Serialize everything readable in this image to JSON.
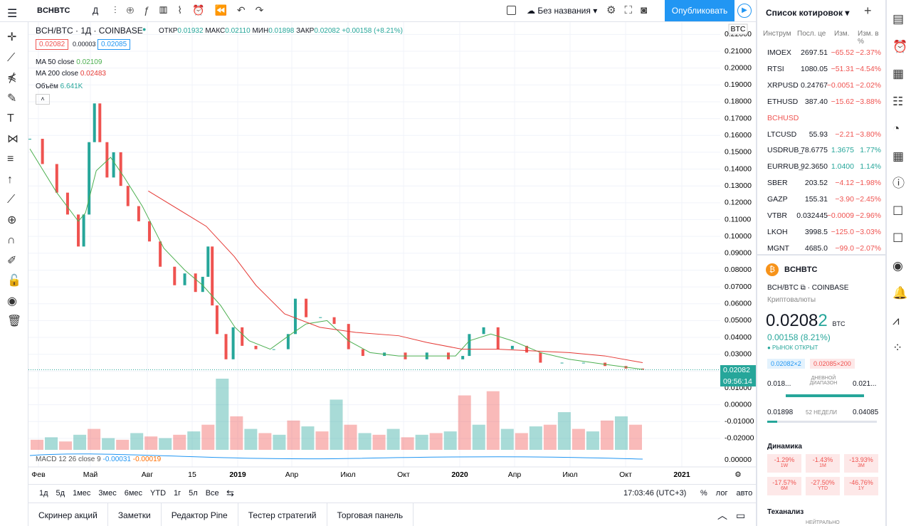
{
  "toolbar": {
    "symbol": "BCHBTC",
    "interval": "Д",
    "layout_name": "Без названия",
    "publish": "Опубликовать"
  },
  "legend": {
    "title": "BCH/BTC · 1Д · COINBASE",
    "open_label": "ОТКР",
    "open": "0.01932",
    "high_label": "МАКС",
    "high": "0.02110",
    "low_label": "МИН",
    "low": "0.01898",
    "close_label": "ЗАКР",
    "close": "0.02082",
    "change": "+0.00158 (+8.21%)",
    "bid": "0.02082",
    "spread": "0.00003",
    "ask": "0.02085",
    "ma50_label": "MA 50 close",
    "ma50": "0.02109",
    "ma200_label": "MA 200 close",
    "ma200": "0.02483",
    "volume_label": "Объём",
    "volume": "6.641K",
    "macd_label": "MACD 12 26 close 9",
    "macd_1": "-0.00031",
    "macd_2": "-0.00019"
  },
  "price_chart": {
    "currency_badge": "BTC",
    "last_price": "0.02082",
    "countdown": "09:56:14",
    "xlim": [
      0,
      1025
    ],
    "yticks": [
      {
        "value": 0.22,
        "label": "0.22000"
      },
      {
        "value": 0.21,
        "label": "0.21000"
      },
      {
        "value": 0.2,
        "label": "0.20000"
      },
      {
        "value": 0.19,
        "label": "0.19000"
      },
      {
        "value": 0.18,
        "label": "0.18000"
      },
      {
        "value": 0.17,
        "label": "0.17000"
      },
      {
        "value": 0.16,
        "label": "0.16000"
      },
      {
        "value": 0.15,
        "label": "0.15000"
      },
      {
        "value": 0.14,
        "label": "0.14000"
      },
      {
        "value": 0.13,
        "label": "0.13000"
      },
      {
        "value": 0.12,
        "label": "0.12000"
      },
      {
        "value": 0.11,
        "label": "0.11000"
      },
      {
        "value": 0.1,
        "label": "0.10000"
      },
      {
        "value": 0.09,
        "label": "0.09000"
      },
      {
        "value": 0.08,
        "label": "0.08000"
      },
      {
        "value": 0.07,
        "label": "0.07000"
      },
      {
        "value": 0.06,
        "label": "0.06000"
      },
      {
        "value": 0.05,
        "label": "0.05000"
      },
      {
        "value": 0.04,
        "label": "0.04000"
      },
      {
        "value": 0.03,
        "label": "0.03000"
      },
      {
        "value": 0.02,
        "label": "0.02000"
      },
      {
        "value": 0.01,
        "label": "0.01000"
      },
      {
        "value": 0,
        "label": "0.00000"
      },
      {
        "value": -0.01,
        "label": "-0.01000"
      },
      {
        "value": -0.02,
        "label": "-0.02000"
      }
    ],
    "macd_tick": "0.00000",
    "time_labels": [
      "Фев",
      "Май",
      "Авг",
      "15",
      "2019",
      "Апр",
      "Июл",
      "Окт",
      "2020",
      "Апр",
      "Июл",
      "Окт",
      "2021"
    ],
    "close": {
      "x": [
        0,
        21,
        45,
        63,
        81,
        90,
        99,
        108,
        117,
        129,
        140,
        152,
        164,
        182,
        200,
        218,
        242,
        259,
        277,
        289,
        298,
        305,
        313,
        328,
        340,
        355,
        378,
        408,
        432,
        444,
        462,
        486,
        509,
        533,
        557,
        593,
        628,
        664,
        700,
        724,
        735,
        759,
        783,
        807,
        831,
        854,
        890,
        926,
        962,
        997,
        1025
      ],
      "values": [
        0.158,
        0.143,
        0.126,
        0.113,
        0.094,
        0.113,
        0.156,
        0.179,
        0.156,
        0.135,
        0.15,
        0.13,
        0.118,
        0.109,
        0.097,
        0.082,
        0.071,
        0.078,
        0.067,
        0.076,
        0.094,
        0.059,
        0.042,
        0.027,
        0.046,
        0.035,
        0.033,
        0.033,
        0.042,
        0.063,
        0.052,
        0.052,
        0.048,
        0.033,
        0.029,
        0.031,
        0.027,
        0.031,
        0.027,
        0.029,
        0.042,
        0.046,
        0.033,
        0.035,
        0.031,
        0.025,
        0.025,
        0.025,
        0.023,
        0.0215,
        0.0208
      ],
      "up_color": "#26a69a",
      "down_color": "#ef5350"
    },
    "ma50": {
      "color": "#4caf50",
      "x": [
        0,
        45,
        81,
        93,
        111,
        135,
        158,
        188,
        224,
        259,
        289,
        319,
        343,
        367,
        402,
        437,
        462,
        497,
        533,
        569,
        617,
        664,
        712,
        735,
        771,
        807,
        854,
        902,
        962,
        1025
      ],
      "values": [
        0.152,
        0.126,
        0.109,
        0.114,
        0.139,
        0.147,
        0.135,
        0.118,
        0.093,
        0.08,
        0.071,
        0.059,
        0.046,
        0.038,
        0.033,
        0.042,
        0.048,
        0.05,
        0.038,
        0.031,
        0.029,
        0.029,
        0.029,
        0.038,
        0.042,
        0.038,
        0.031,
        0.027,
        0.024,
        0.021
      ]
    },
    "ma200": {
      "color": "#e53935",
      "x": [
        198,
        295,
        342,
        378,
        426,
        485,
        545,
        617,
        664,
        723,
        783,
        842,
        902,
        962,
        1025
      ],
      "values": [
        0.127,
        0.106,
        0.088,
        0.071,
        0.054,
        0.046,
        0.043,
        0.041,
        0.037,
        0.033,
        0.033,
        0.032,
        0.031,
        0.029,
        0.025
      ]
    },
    "volume": {
      "values": [
        12,
        15,
        10,
        18,
        25,
        14,
        12,
        20,
        16,
        14,
        18,
        22,
        30,
        85,
        40,
        25,
        20,
        18,
        35,
        28,
        22,
        60,
        30,
        20,
        18,
        25,
        15,
        18,
        20,
        22,
        65,
        30,
        70,
        25,
        20,
        28,
        30,
        45,
        25,
        22,
        35,
        40,
        30
      ]
    }
  },
  "timeframes": [
    "1д",
    "5д",
    "1мес",
    "3мес",
    "6мес",
    "YTD",
    "1г",
    "5л",
    "Все"
  ],
  "clock": "17:03:46 (UTC+3)",
  "scale_buttons": [
    "%",
    "лог",
    "авто"
  ],
  "bottom_tabs": [
    "Скринер акций",
    "Заметки",
    "Редактор Pine",
    "Тестер стратегий",
    "Торговая панель"
  ],
  "watchlist": {
    "title": "Список котировок",
    "columns": [
      "Инструм",
      "Посл. це",
      "Изм.",
      "Изм. в %"
    ],
    "rows": [
      [
        "IMOEX",
        "2697.51",
        "−65.52",
        "−2.37%"
      ],
      [
        "RTSI",
        "1080.05",
        "−51.31",
        "−4.54%"
      ],
      [
        "XRPUSD",
        "0.24767",
        "−0.0051",
        "−2.02%"
      ],
      [
        "ETHUSD",
        "387.40",
        "−15.62",
        "−3.88%"
      ],
      [
        "BCHUSD",
        "",
        "",
        ""
      ],
      [
        "LTCUSD",
        "55.93",
        "−2.21",
        "−3.80%"
      ],
      [
        "USDRUB_",
        "78.6775",
        "1.3675",
        "1.77%"
      ],
      [
        "EURRUB_",
        "92.3650",
        "1.0400",
        "1.14%"
      ],
      [
        "SBER",
        "203.52",
        "−4.12",
        "−1.98%"
      ],
      [
        "GAZP",
        "155.31",
        "−3.90",
        "−2.45%"
      ],
      [
        "VTBR",
        "0.032445",
        "−0.0009",
        "−2.96%"
      ],
      [
        "LKOH",
        "3998.5",
        "−125.0",
        "−3.03%"
      ],
      [
        "MGNT",
        "4685.0",
        "−99.0",
        "−2.07%"
      ]
    ]
  },
  "details": {
    "symbol": "BCHBTC",
    "pair": "BCH/BTC",
    "exchange": "COINBASE",
    "category": "Криптовалюты",
    "price": "0.0208",
    "price_last_digit": "2",
    "currency": "BTC",
    "change": "0.00158 (8.21%)",
    "market_status": "● РЫНОК ОТКРЫТ",
    "bid_pill": "0.02082×2",
    "ask_pill": "0.02085×200",
    "day_low": "0.018...",
    "day_label": "ДНЕВНОЙ ДИАПАЗОН",
    "day_high": "0.021...",
    "week_low": "0.01898",
    "week_label": "52 НЕДЕЛИ",
    "week_high": "0.04085",
    "perf_title": "Динамика",
    "perf": [
      [
        "-1.29%",
        "1W"
      ],
      [
        "-1.43%",
        "1M"
      ],
      [
        "-13.93%",
        "3M"
      ],
      [
        "-17.57%",
        "6M"
      ],
      [
        "-27.50%",
        "YTD"
      ],
      [
        "-46.76%",
        "1Y"
      ]
    ],
    "tech_title": "Теханализ",
    "tech_value": "НЕЙТРАЛЬНО"
  }
}
